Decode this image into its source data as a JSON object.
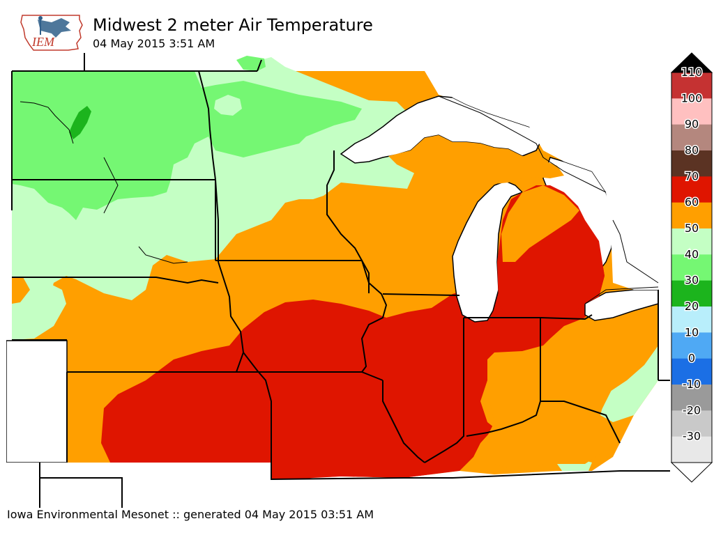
{
  "header": {
    "title": "Midwest 2 meter Air Temperature",
    "subtitle": "04 May 2015 3:51 AM",
    "logo_text": "IEM"
  },
  "footer": {
    "text": "Iowa Environmental Mesonet :: generated 04 May 2015 03:51 AM"
  },
  "colorbar": {
    "levels": [
      {
        "label": "110",
        "color": "#c53232"
      },
      {
        "label": "100",
        "color": "#ffc0c0"
      },
      {
        "label": "90",
        "color": "#b4877e"
      },
      {
        "label": "80",
        "color": "#5b3323"
      },
      {
        "label": "70",
        "color": "#df1500"
      },
      {
        "label": "60",
        "color": "#ff9f00"
      },
      {
        "label": "50",
        "color": "#c4ffc4"
      },
      {
        "label": "40",
        "color": "#75f773"
      },
      {
        "label": "30",
        "color": "#1cb41d"
      },
      {
        "label": "20",
        "color": "#b8eefb"
      },
      {
        "label": "10",
        "color": "#4fa9f4"
      },
      {
        "label": "0",
        "color": "#1b6fe5"
      },
      {
        "label": "-10",
        "color": "#9a9a9a"
      },
      {
        "label": "-20",
        "color": "#c9c9c9"
      },
      {
        "label": "-30",
        "color": "#e8e8e8"
      }
    ]
  },
  "map": {
    "colors": {
      "green": "#75f773",
      "darkgreen": "#1cb41d",
      "lightgreen": "#c4ffc4",
      "orange": "#ff9f00",
      "red": "#df1500",
      "white": "#ffffff"
    }
  }
}
